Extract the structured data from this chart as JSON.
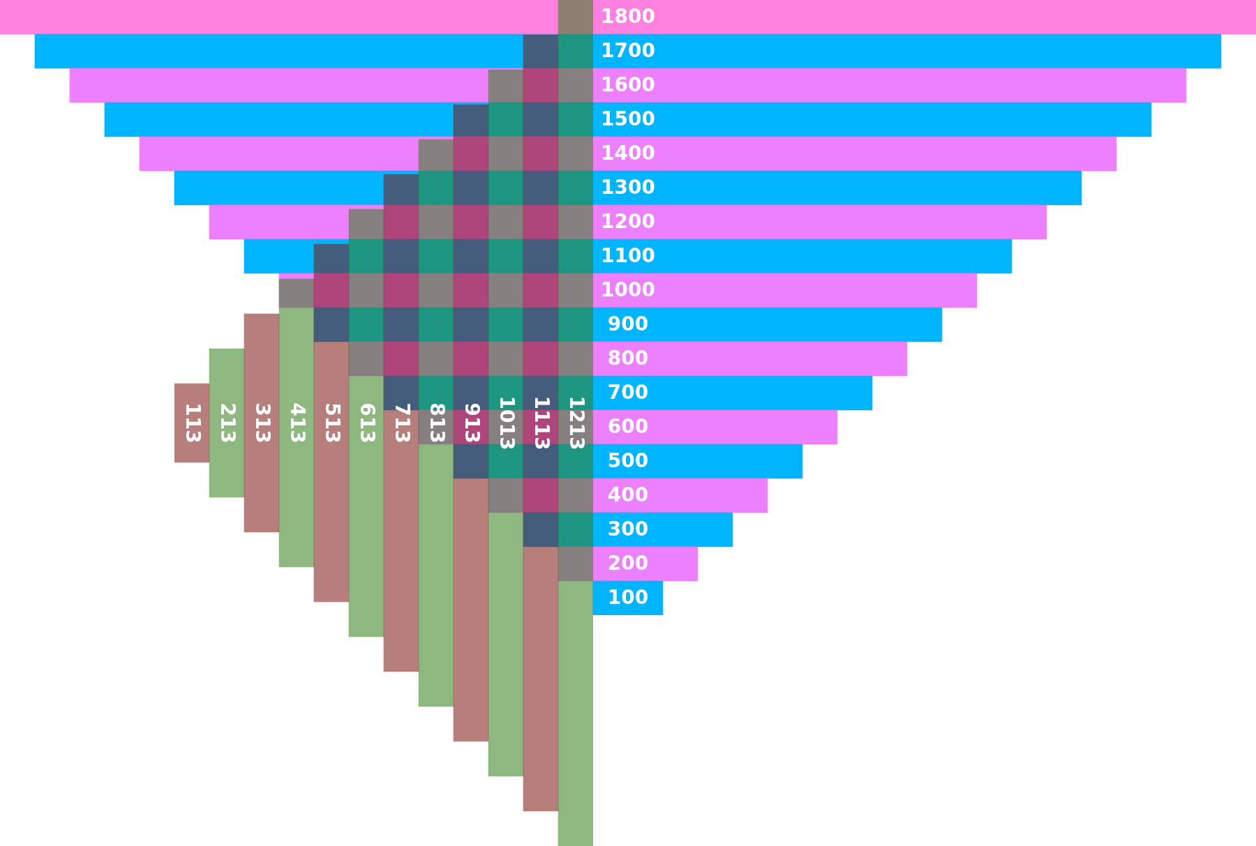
{
  "chart_data": [
    {
      "type": "other",
      "categories": [
        null,
        null,
        null,
        null,
        null,
        null,
        null,
        null,
        null,
        null,
        null,
        null,
        null,
        null,
        null,
        null,
        null,
        null
      ],
      "values": [
        1800,
        1700,
        1600,
        1500,
        1400,
        1300,
        1200,
        1100,
        1000,
        900,
        800,
        700,
        600,
        500,
        400,
        300,
        200,
        100
      ],
      "colors": [
        "#ff80df",
        "#00b4ff",
        "#ec80ff",
        "#00b4ff",
        "#ec80ff",
        "#00b4ff",
        "#ec80ff",
        "#00b4ff",
        "#ec80ff",
        "#00b4ff",
        "#ec80ff",
        "#00b4ff",
        "#ec80ff",
        "#00b4ff",
        "#ec80ff",
        "#00b4ff",
        "#ec80ff",
        "#00b4ff"
      ],
      "data_labels": true,
      "legend": false
    },
    {
      "type": "other",
      "categories": [
        null,
        null,
        null,
        null,
        null,
        null,
        null,
        null,
        null,
        null,
        null,
        null
      ],
      "values": [
        113,
        213,
        313,
        413,
        513,
        613,
        713,
        813,
        913,
        1013,
        1113,
        1213
      ],
      "colors": [
        "#b77f7c",
        "#8fb880",
        "#b77f7c",
        "#8fb880",
        "#b77f7c",
        "#8fb880",
        "#b77f7c",
        "#8fb880",
        "#b77f7c",
        "#8fb880",
        "#b77f7c",
        "#8fb880"
      ],
      "data_labels": true,
      "legend": false
    }
  ]
}
